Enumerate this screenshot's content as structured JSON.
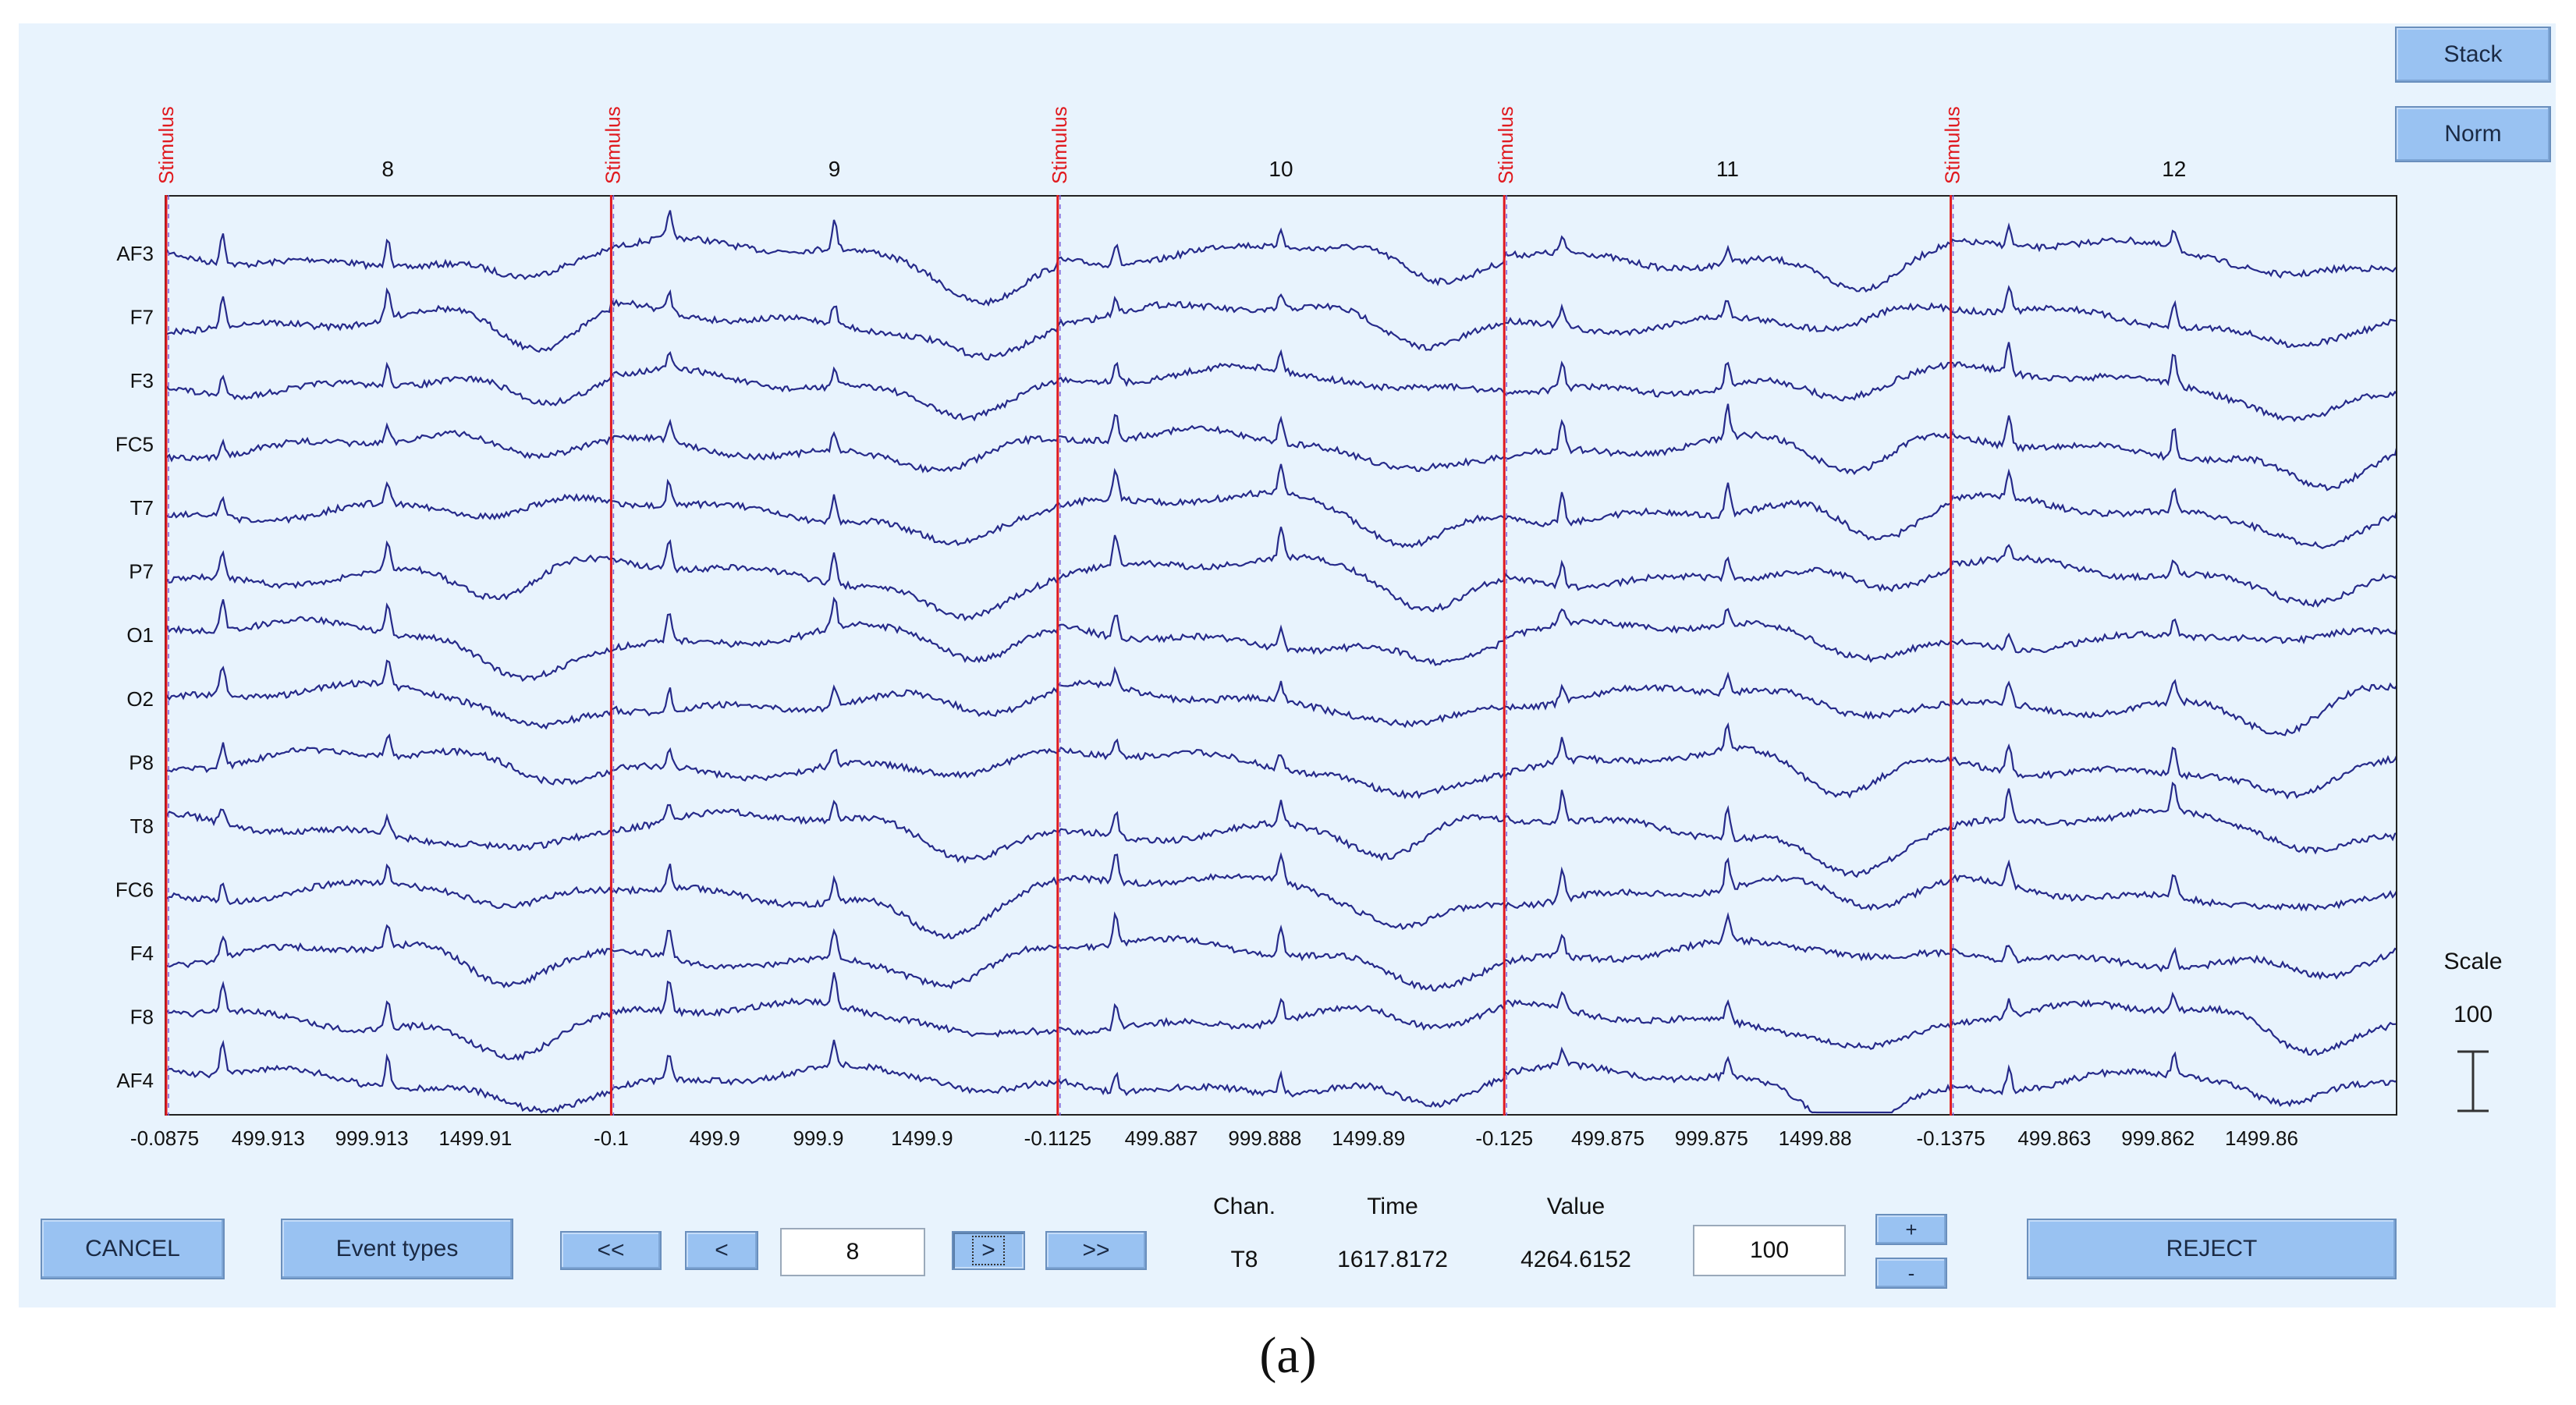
{
  "buttons": {
    "stack": "Stack",
    "norm": "Norm",
    "cancel": "CANCEL",
    "event_types": "Event types",
    "first": "<<",
    "prev": "<",
    "next": ">",
    "last": ">>",
    "plus": "+",
    "minus": "-",
    "reject": "REJECT"
  },
  "scale": {
    "label": "Scale",
    "value": "100"
  },
  "navigation": {
    "epoch_field": "8",
    "value_field": "100"
  },
  "info": {
    "chan_label": "Chan.",
    "time_label": "Time",
    "value_label": "Value",
    "chan": "T8",
    "time": "1617.8172",
    "value": "4264.6152"
  },
  "caption": "(a)",
  "colors": {
    "trace": "#262a8a",
    "stimulus": "#e0191e",
    "event_line": "#7a5cd6",
    "button": "#99c2f2",
    "panel": "#e8f3fd"
  },
  "chart_data": {
    "type": "line",
    "title": "",
    "channels": [
      "AF3",
      "F7",
      "F3",
      "FC5",
      "T7",
      "P7",
      "O1",
      "O2",
      "P8",
      "T8",
      "FC6",
      "F4",
      "F8",
      "AF4"
    ],
    "epochs": [
      {
        "number": "8",
        "event": "Stimulus",
        "ticks": [
          "-0.0875",
          "499.913",
          "999.913",
          "1499.91"
        ]
      },
      {
        "number": "9",
        "event": "Stimulus",
        "ticks": [
          "-0.1",
          "499.9",
          "999.9",
          "1499.9"
        ]
      },
      {
        "number": "10",
        "event": "Stimulus",
        "ticks": [
          "-0.1125",
          "499.887",
          "999.888",
          "1499.89"
        ]
      },
      {
        "number": "11",
        "event": "Stimulus",
        "ticks": [
          "-0.125",
          "499.875",
          "999.875",
          "1499.88"
        ]
      },
      {
        "number": "12",
        "event": "Stimulus",
        "ticks": [
          "-0.1375",
          "499.863",
          "999.862",
          "1499.86"
        ]
      }
    ],
    "epoch_ms_range": [
      -0.1,
      2000
    ],
    "scale": 100
  }
}
